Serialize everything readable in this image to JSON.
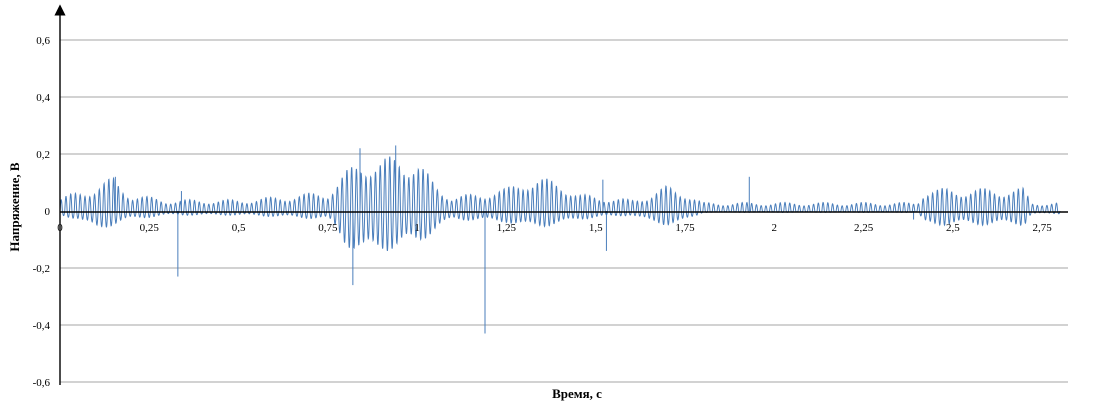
{
  "chart_data": {
    "type": "line",
    "title": "",
    "xlabel": "Время, с",
    "ylabel": "Напряжение, В",
    "xlim": [
      0,
      2.8
    ],
    "ylim": [
      -0.6,
      0.6
    ],
    "x_ticks": [
      0,
      0.25,
      0.5,
      0.75,
      1,
      1.25,
      1.5,
      1.75,
      2,
      2.25,
      2.5,
      2.75
    ],
    "x_tick_labels": [
      "0",
      "0,25",
      "0,5",
      "0,75",
      "1",
      "1,25",
      "1,5",
      "1,75",
      "2",
      "2,25",
      "2,5",
      "2,75"
    ],
    "y_ticks": [
      0.6,
      0.4,
      0.2,
      0,
      -0.2,
      -0.4,
      -0.6
    ],
    "y_tick_labels": [
      "0,6",
      "0,4",
      "0,2",
      "0",
      "-0,2",
      "-0,4",
      "-0,6"
    ],
    "grid": "horizontal",
    "legend": "none",
    "line_color": "#4a7ebb",
    "series": [
      {
        "envelope": [
          [
            0.0,
            0.015,
            0.045
          ],
          [
            0.05,
            0.03,
            0.07
          ],
          [
            0.1,
            0.07,
            0.09
          ],
          [
            0.15,
            0.05,
            0.12
          ],
          [
            0.2,
            0.03,
            0.06
          ],
          [
            0.3,
            0.015,
            0.04
          ],
          [
            0.5,
            0.015,
            0.04
          ],
          [
            0.6,
            0.02,
            0.05
          ],
          [
            0.75,
            0.03,
            0.07
          ],
          [
            0.8,
            0.12,
            0.14
          ],
          [
            0.85,
            0.17,
            0.2
          ],
          [
            0.9,
            0.14,
            0.18
          ],
          [
            0.95,
            0.14,
            0.21
          ],
          [
            1.0,
            0.12,
            0.18
          ],
          [
            1.05,
            0.07,
            0.1
          ],
          [
            1.1,
            0.03,
            0.05
          ],
          [
            1.25,
            0.04,
            0.08
          ],
          [
            1.3,
            0.06,
            0.12
          ],
          [
            1.4,
            0.05,
            0.11
          ],
          [
            1.45,
            0.03,
            0.06
          ],
          [
            1.6,
            0.015,
            0.04
          ],
          [
            1.65,
            0.04,
            0.06
          ],
          [
            1.7,
            0.05,
            0.09
          ],
          [
            1.75,
            0.04,
            0.07
          ],
          [
            1.8,
            0.005,
            0.03
          ],
          [
            2.4,
            0.005,
            0.03
          ],
          [
            2.42,
            0.05,
            0.08
          ],
          [
            2.7,
            0.05,
            0.08
          ],
          [
            2.72,
            0.01,
            0.03
          ],
          [
            2.8,
            0.01,
            0.03
          ]
        ],
        "spikes": [
          [
            0.155,
            0.12
          ],
          [
            0.33,
            -0.23
          ],
          [
            0.34,
            0.07
          ],
          [
            0.82,
            -0.26
          ],
          [
            0.84,
            0.22
          ],
          [
            0.94,
            0.23
          ],
          [
            1.19,
            -0.43
          ],
          [
            1.52,
            0.11
          ],
          [
            1.53,
            -0.14
          ],
          [
            1.93,
            0.12
          ],
          [
            2.39,
            -0.03
          ]
        ]
      }
    ]
  }
}
